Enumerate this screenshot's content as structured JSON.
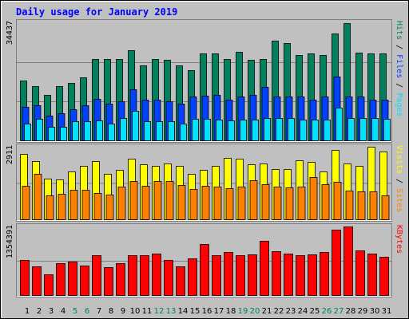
{
  "title": "Daily usage for January 2019",
  "chart_data": [
    {
      "type": "bar",
      "ylim": [
        0,
        34437
      ],
      "yticks": [
        34437
      ],
      "legend_separator": " / ",
      "series": [
        {
          "name": "Hits",
          "color": "#00805c",
          "values": [
            17572,
            15932,
            13355,
            15932,
            16870,
            18510,
            23899,
            23899,
            23899,
            26476,
            22024,
            23899,
            23664,
            22024,
            20618,
            25539,
            25539,
            23899,
            26007,
            23664,
            23899,
            29288,
            28585,
            25070,
            25539,
            25070,
            31396,
            34437,
            25773,
            25539,
            25539
          ]
        },
        {
          "name": "Files",
          "color": "#0040ff",
          "values": [
            9840,
            10310,
            7263,
            7966,
            9138,
            10310,
            12184,
            10778,
            11481,
            14995,
            11950,
            11950,
            11481,
            10778,
            12887,
            13121,
            13355,
            11950,
            12887,
            13355,
            15698,
            12887,
            12887,
            12887,
            11950,
            12887,
            18744,
            12887,
            12887,
            11950,
            11950
          ]
        },
        {
          "name": "Pages",
          "color": "#00e0ff",
          "values": [
            4920,
            6326,
            3983,
            3983,
            5623,
            5623,
            5858,
            4920,
            6560,
            8669,
            5623,
            5623,
            5623,
            4920,
            6326,
            6326,
            6092,
            5858,
            6092,
            6092,
            6560,
            6560,
            6560,
            6092,
            6092,
            6092,
            9606,
            6560,
            6560,
            6560,
            6326
          ]
        }
      ]
    },
    {
      "type": "bar",
      "ylim": [
        0,
        2911
      ],
      "yticks": [
        2911
      ],
      "legend_separator": " / ",
      "series": [
        {
          "name": "Visits",
          "color": "#ffff00",
          "values": [
            2623,
            2336,
            1632,
            1600,
            1920,
            2144,
            2336,
            1824,
            1984,
            2432,
            2208,
            2144,
            2240,
            2144,
            1824,
            1984,
            2144,
            2464,
            2432,
            2208,
            2240,
            2016,
            2016,
            2368,
            2304,
            1920,
            2784,
            2240,
            2144,
            2911,
            2720
          ]
        },
        {
          "name": "Sites",
          "color": "#ff8000",
          "values": [
            1344,
            1824,
            960,
            1024,
            1184,
            1184,
            1056,
            992,
            1312,
            1536,
            1344,
            1536,
            1536,
            1376,
            1216,
            1344,
            1312,
            1248,
            1312,
            1568,
            1408,
            1312,
            1280,
            1312,
            1696,
            1408,
            1504,
            1152,
            1120,
            1120,
            960
          ]
        }
      ]
    },
    {
      "type": "bar",
      "ylim": [
        0,
        1354391
      ],
      "yticks": [
        1354391
      ],
      "categories": [
        "1",
        "2",
        "3",
        "4",
        "5",
        "6",
        "7",
        "8",
        "9",
        "10",
        "11",
        "12",
        "13",
        "14",
        "15",
        "16",
        "17",
        "18",
        "19",
        "20",
        "21",
        "22",
        "23",
        "24",
        "25",
        "26",
        "27",
        "28",
        "29",
        "30",
        "31"
      ],
      "highlight_color": "#00805c",
      "highlight_indices": [
        4,
        5,
        11,
        12,
        18,
        19,
        25,
        26
      ],
      "series": [
        {
          "name": "KBytes",
          "color": "#ff0000",
          "values": [
            692956,
            566964,
            409474,
            629960,
            661458,
            582713,
            787450,
            551215,
            629960,
            787450,
            787450,
            818948,
            692956,
            566964,
            724454,
            1007936,
            787450,
            850446,
            787450,
            803199,
            1070932,
            866195,
            818948,
            787450,
            803199,
            850446,
            1291418,
            1354391,
            881944,
            818948,
            755952
          ]
        }
      ]
    }
  ]
}
